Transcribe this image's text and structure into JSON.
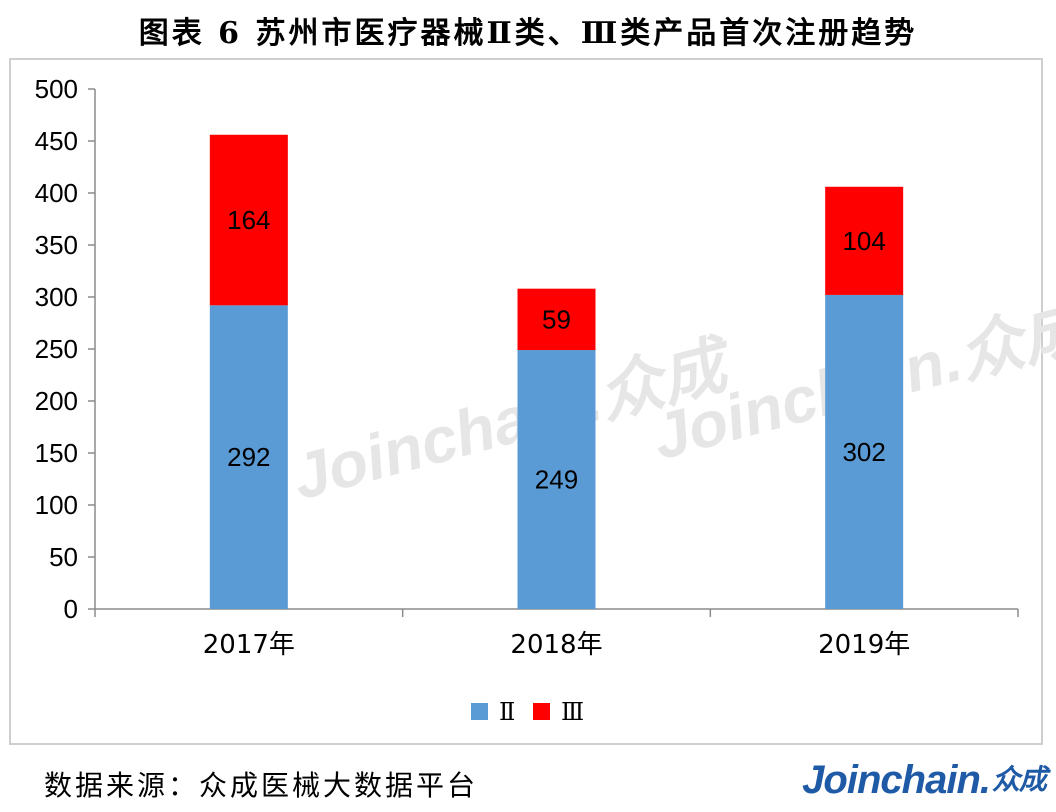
{
  "title": "图表 6   苏州市医疗器械Ⅱ类、Ⅲ类产品首次注册趋势",
  "source": "数据来源：众成医械大数据平台",
  "logo": {
    "main": "Joinchain.",
    "cn": "众成"
  },
  "watermark": "Joinchain.众成",
  "chart_data": {
    "type": "bar",
    "stacked": true,
    "categories": [
      "2017年",
      "2018年",
      "2019年"
    ],
    "series": [
      {
        "name": "Ⅱ",
        "color": "#5b9bd5",
        "values": [
          292,
          249,
          302
        ]
      },
      {
        "name": "Ⅲ",
        "color": "#ff0000",
        "values": [
          164,
          59,
          104
        ]
      }
    ],
    "ylim": [
      0,
      500
    ],
    "yticks": [
      0,
      50,
      100,
      150,
      200,
      250,
      300,
      350,
      400,
      450,
      500
    ],
    "grid": false,
    "legend": "bottom"
  }
}
